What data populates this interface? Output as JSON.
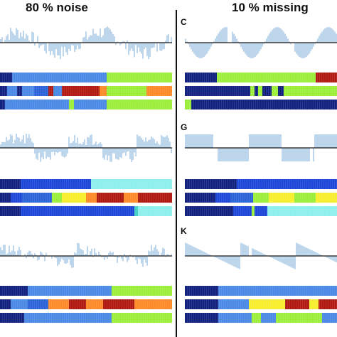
{
  "titles": {
    "left": "80 % noise",
    "right": "10 % missing"
  },
  "panel_labels": {
    "C": "C",
    "G": "G",
    "K": "K"
  },
  "colors": {
    "signal": "#6fa4d4",
    "axis": "#1a1a1a",
    "navy": "#13217f",
    "royal": "#1c47d8",
    "mid": "#2c64d8",
    "sky": "#4a8ae6",
    "lime": "#9bee3a",
    "cyan": "#8ef0ec",
    "orange": "#ff8a2a",
    "red": "#b01a10",
    "yellow": "#f7ee2c",
    "teal": "#44d0c4"
  },
  "signals": {
    "A": {
      "kind": "noisy",
      "base": "sine",
      "period": 118,
      "phase": 0.3,
      "amp": 15,
      "noise": 10,
      "seed": 7
    },
    "C": {
      "kind": "clean",
      "base": "sine",
      "period": 72,
      "phase": 2.8,
      "amp": 22,
      "missing": [
        [
          60,
          66
        ],
        [
          150,
          154
        ]
      ]
    },
    "E": {
      "kind": "noisy",
      "base": "square",
      "period": 96,
      "phase": 0.0,
      "amp": 12,
      "noise": 8,
      "seed": 21
    },
    "G": {
      "kind": "clean",
      "base": "square",
      "period": 92,
      "phase": 0.2,
      "amp": 19,
      "missing": [
        [
          40,
          45
        ],
        [
          176,
          180
        ]
      ]
    },
    "I": {
      "kind": "noisy",
      "base": "saw",
      "period": 104,
      "phase": 0.0,
      "amp": 12,
      "noise": 8,
      "seed": 33
    },
    "K": {
      "kind": "clean",
      "base": "saw",
      "period": 78,
      "phase": 0.0,
      "amp": 19,
      "missing": [
        [
          90,
          94
        ]
      ]
    }
  },
  "sequences": {
    "A": [
      [
        [
          0,
          0.07,
          "navy"
        ],
        [
          0.07,
          0.62,
          "sky"
        ],
        [
          0.62,
          1.0,
          "lime"
        ]
      ],
      [
        [
          0,
          0.04,
          "navy"
        ],
        [
          0.04,
          0.1,
          "sky"
        ],
        [
          0.1,
          0.13,
          "navy"
        ],
        [
          0.13,
          0.2,
          "sky"
        ],
        [
          0.2,
          0.28,
          "mid"
        ],
        [
          0.28,
          0.31,
          "red"
        ],
        [
          0.31,
          0.36,
          "sky"
        ],
        [
          0.36,
          0.58,
          "red"
        ],
        [
          0.58,
          0.62,
          "orange"
        ],
        [
          0.62,
          0.7,
          "lime"
        ],
        [
          0.7,
          0.85,
          "lime"
        ],
        [
          0.85,
          1.0,
          "orange"
        ]
      ],
      [
        [
          0,
          0.03,
          "navy"
        ],
        [
          0.03,
          0.4,
          "sky"
        ],
        [
          0.4,
          0.43,
          "lime"
        ],
        [
          0.43,
          0.62,
          "sky"
        ],
        [
          0.62,
          1.0,
          "lime"
        ]
      ]
    ],
    "C": [
      [
        [
          0,
          0.21,
          "navy"
        ],
        [
          0.21,
          0.86,
          "lime"
        ],
        [
          0.86,
          1.0,
          "red"
        ]
      ],
      [
        [
          0,
          0.43,
          "navy"
        ],
        [
          0.43,
          0.46,
          "lime"
        ],
        [
          0.46,
          0.48,
          "navy"
        ],
        [
          0.48,
          0.51,
          "lime"
        ],
        [
          0.51,
          0.57,
          "navy"
        ],
        [
          0.57,
          0.61,
          "lime"
        ],
        [
          0.61,
          0.65,
          "navy"
        ],
        [
          0.65,
          1.0,
          "lime"
        ]
      ],
      [
        [
          0,
          0.04,
          "lime"
        ],
        [
          0.04,
          1.0,
          "navy"
        ]
      ]
    ],
    "E": [
      [
        [
          0,
          0.12,
          "navy"
        ],
        [
          0.12,
          0.53,
          "royal"
        ],
        [
          0.53,
          1.0,
          "cyan"
        ]
      ],
      [
        [
          0,
          0.06,
          "navy"
        ],
        [
          0.06,
          0.13,
          "royal"
        ],
        [
          0.13,
          0.3,
          "mid"
        ],
        [
          0.3,
          0.36,
          "lime"
        ],
        [
          0.36,
          0.5,
          "yellow"
        ],
        [
          0.5,
          0.56,
          "orange"
        ],
        [
          0.56,
          0.72,
          "red"
        ],
        [
          0.72,
          0.8,
          "orange"
        ],
        [
          0.8,
          1.0,
          "red"
        ]
      ],
      [
        [
          0,
          0.12,
          "navy"
        ],
        [
          0.12,
          0.78,
          "royal"
        ],
        [
          0.78,
          0.8,
          "teal"
        ],
        [
          0.8,
          1.0,
          "cyan"
        ]
      ]
    ],
    "G": [
      [
        [
          0,
          0.34,
          "navy"
        ],
        [
          0.34,
          1.0,
          "royal"
        ]
      ],
      [
        [
          0,
          0.2,
          "navy"
        ],
        [
          0.2,
          0.3,
          "royal"
        ],
        [
          0.3,
          0.45,
          "mid"
        ],
        [
          0.45,
          0.55,
          "lime"
        ],
        [
          0.55,
          0.72,
          "yellow"
        ],
        [
          0.72,
          0.86,
          "lime"
        ],
        [
          0.86,
          1.0,
          "yellow"
        ]
      ],
      [
        [
          0,
          0.32,
          "navy"
        ],
        [
          0.32,
          0.44,
          "royal"
        ],
        [
          0.44,
          0.46,
          "lime"
        ],
        [
          0.46,
          0.54,
          "royal"
        ],
        [
          0.54,
          1.0,
          "cyan"
        ]
      ]
    ],
    "I": [
      [
        [
          0,
          0.16,
          "navy"
        ],
        [
          0.16,
          0.65,
          "sky"
        ],
        [
          0.65,
          1.0,
          "lime"
        ]
      ],
      [
        [
          0,
          0.06,
          "navy"
        ],
        [
          0.06,
          0.16,
          "sky"
        ],
        [
          0.16,
          0.28,
          "mid"
        ],
        [
          0.28,
          0.4,
          "orange"
        ],
        [
          0.4,
          0.5,
          "red"
        ],
        [
          0.5,
          0.6,
          "orange"
        ],
        [
          0.6,
          0.78,
          "red"
        ],
        [
          0.78,
          1.0,
          "orange"
        ]
      ],
      [
        [
          0,
          0.14,
          "navy"
        ],
        [
          0.14,
          0.65,
          "sky"
        ],
        [
          0.65,
          1.0,
          "lime"
        ]
      ]
    ],
    "K": [
      [
        [
          0,
          0.22,
          "navy"
        ],
        [
          0.22,
          1.0,
          "sky"
        ]
      ],
      [
        [
          0,
          0.22,
          "navy"
        ],
        [
          0.22,
          0.42,
          "sky"
        ],
        [
          0.42,
          0.66,
          "yellow"
        ],
        [
          0.66,
          0.82,
          "red"
        ],
        [
          0.82,
          0.88,
          "yellow"
        ],
        [
          0.88,
          1.0,
          "red"
        ]
      ],
      [
        [
          0,
          0.22,
          "navy"
        ],
        [
          0.22,
          0.44,
          "sky"
        ],
        [
          0.44,
          0.5,
          "lime"
        ],
        [
          0.5,
          0.6,
          "sky"
        ],
        [
          0.6,
          0.9,
          "lime"
        ],
        [
          0.9,
          1.0,
          "sky"
        ]
      ]
    ]
  }
}
